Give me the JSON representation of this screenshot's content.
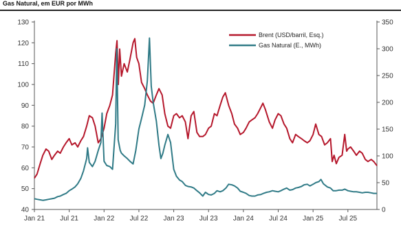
{
  "chart_data": {
    "type": "line",
    "title": "Gas Natural, em EUR por MWh",
    "x_ticks": [
      "Jan 21",
      "Jul 21",
      "Jan 22",
      "Jul 22",
      "Jan 23",
      "Jul 23",
      "Jan 24",
      "Jul 24",
      "Jan 25",
      "Jul 25"
    ],
    "x_range": [
      "2021-01",
      "2025-12"
    ],
    "y_left": {
      "min": 40,
      "max": 130,
      "ticks": [
        40,
        50,
        60,
        70,
        80,
        90,
        100,
        110,
        120,
        130
      ]
    },
    "y_right": {
      "min": 0,
      "max": 350,
      "ticks": [
        0,
        50,
        100,
        150,
        200,
        250,
        300,
        350
      ]
    },
    "legend_position": "top-right",
    "grid": false,
    "series": [
      {
        "name": "Brent (USD/barril, Esq.)",
        "axis": "left",
        "color": "#b5172b",
        "points": [
          [
            "2021-01-01",
            55
          ],
          [
            "2021-01-15",
            57
          ],
          [
            "2021-02-01",
            62
          ],
          [
            "2021-02-15",
            66
          ],
          [
            "2021-03-01",
            69
          ],
          [
            "2021-03-15",
            68
          ],
          [
            "2021-04-01",
            64
          ],
          [
            "2021-04-15",
            66
          ],
          [
            "2021-05-01",
            68
          ],
          [
            "2021-05-15",
            67
          ],
          [
            "2021-06-01",
            70
          ],
          [
            "2021-06-15",
            72
          ],
          [
            "2021-07-01",
            74
          ],
          [
            "2021-07-15",
            71
          ],
          [
            "2021-08-01",
            72
          ],
          [
            "2021-08-15",
            70
          ],
          [
            "2021-09-01",
            73
          ],
          [
            "2021-09-15",
            75
          ],
          [
            "2021-10-01",
            80
          ],
          [
            "2021-10-15",
            85
          ],
          [
            "2021-11-01",
            84
          ],
          [
            "2021-11-15",
            80
          ],
          [
            "2021-12-01",
            72
          ],
          [
            "2021-12-15",
            74
          ],
          [
            "2022-01-01",
            79
          ],
          [
            "2022-01-15",
            86
          ],
          [
            "2022-02-01",
            90
          ],
          [
            "2022-02-15",
            95
          ],
          [
            "2022-03-01",
            115
          ],
          [
            "2022-03-08",
            121
          ],
          [
            "2022-03-15",
            100
          ],
          [
            "2022-03-22",
            117
          ],
          [
            "2022-04-01",
            104
          ],
          [
            "2022-04-15",
            110
          ],
          [
            "2022-05-01",
            106
          ],
          [
            "2022-05-15",
            112
          ],
          [
            "2022-06-01",
            120
          ],
          [
            "2022-06-10",
            122
          ],
          [
            "2022-06-20",
            113
          ],
          [
            "2022-07-01",
            110
          ],
          [
            "2022-07-15",
            101
          ],
          [
            "2022-08-01",
            98
          ],
          [
            "2022-08-15",
            95
          ],
          [
            "2022-09-01",
            92
          ],
          [
            "2022-09-15",
            91
          ],
          [
            "2022-10-01",
            95
          ],
          [
            "2022-10-15",
            98
          ],
          [
            "2022-11-01",
            95
          ],
          [
            "2022-11-15",
            86
          ],
          [
            "2022-12-01",
            80
          ],
          [
            "2022-12-15",
            79
          ],
          [
            "2023-01-01",
            85
          ],
          [
            "2023-01-15",
            86
          ],
          [
            "2023-02-01",
            84
          ],
          [
            "2023-02-15",
            85
          ],
          [
            "2023-03-01",
            82
          ],
          [
            "2023-03-15",
            74
          ],
          [
            "2023-04-01",
            85
          ],
          [
            "2023-04-15",
            87
          ],
          [
            "2023-05-01",
            77
          ],
          [
            "2023-05-15",
            75
          ],
          [
            "2023-06-01",
            75
          ],
          [
            "2023-06-15",
            76
          ],
          [
            "2023-07-01",
            79
          ],
          [
            "2023-07-15",
            80
          ],
          [
            "2023-08-01",
            86
          ],
          [
            "2023-08-15",
            85
          ],
          [
            "2023-09-01",
            90
          ],
          [
            "2023-09-15",
            94
          ],
          [
            "2023-09-28",
            96
          ],
          [
            "2023-10-15",
            90
          ],
          [
            "2023-11-01",
            86
          ],
          [
            "2023-11-15",
            81
          ],
          [
            "2023-12-01",
            79
          ],
          [
            "2023-12-15",
            76
          ],
          [
            "2024-01-01",
            77
          ],
          [
            "2024-01-15",
            79
          ],
          [
            "2024-02-01",
            82
          ],
          [
            "2024-02-15",
            83
          ],
          [
            "2024-03-01",
            84
          ],
          [
            "2024-03-15",
            86
          ],
          [
            "2024-04-01",
            89
          ],
          [
            "2024-04-12",
            91
          ],
          [
            "2024-04-25",
            88
          ],
          [
            "2024-05-15",
            82
          ],
          [
            "2024-06-01",
            79
          ],
          [
            "2024-06-15",
            83
          ],
          [
            "2024-07-01",
            86
          ],
          [
            "2024-07-15",
            85
          ],
          [
            "2024-08-01",
            81
          ],
          [
            "2024-08-15",
            79
          ],
          [
            "2024-09-01",
            74
          ],
          [
            "2024-09-15",
            72
          ],
          [
            "2024-10-01",
            76
          ],
          [
            "2024-10-15",
            75
          ],
          [
            "2024-11-01",
            74
          ],
          [
            "2024-11-15",
            73
          ],
          [
            "2024-12-01",
            72
          ],
          [
            "2024-12-15",
            73
          ],
          [
            "2025-01-01",
            76
          ],
          [
            "2025-01-15",
            81
          ],
          [
            "2025-02-01",
            76
          ],
          [
            "2025-02-15",
            75
          ],
          [
            "2025-03-01",
            71
          ],
          [
            "2025-03-15",
            72
          ],
          [
            "2025-04-01",
            74
          ],
          [
            "2025-04-10",
            63
          ],
          [
            "2025-04-20",
            66
          ],
          [
            "2025-05-01",
            62
          ],
          [
            "2025-05-15",
            65
          ],
          [
            "2025-06-01",
            66
          ],
          [
            "2025-06-15",
            76
          ],
          [
            "2025-06-25",
            68
          ],
          [
            "2025-07-01",
            69
          ],
          [
            "2025-07-15",
            70
          ],
          [
            "2025-08-01",
            68
          ],
          [
            "2025-08-15",
            66
          ],
          [
            "2025-09-01",
            68
          ],
          [
            "2025-09-15",
            67
          ],
          [
            "2025-10-01",
            64
          ],
          [
            "2025-10-15",
            63
          ],
          [
            "2025-11-01",
            64
          ],
          [
            "2025-11-15",
            63
          ],
          [
            "2025-12-01",
            61
          ]
        ]
      },
      {
        "name": "Gas Natural (E., MWh)",
        "axis": "right",
        "color": "#2f7a86",
        "points": [
          [
            "2021-01-01",
            20
          ],
          [
            "2021-01-15",
            19
          ],
          [
            "2021-02-01",
            18
          ],
          [
            "2021-02-15",
            17
          ],
          [
            "2021-03-01",
            18
          ],
          [
            "2021-03-15",
            19
          ],
          [
            "2021-04-01",
            20
          ],
          [
            "2021-04-15",
            21
          ],
          [
            "2021-05-01",
            24
          ],
          [
            "2021-05-15",
            25
          ],
          [
            "2021-06-01",
            28
          ],
          [
            "2021-06-15",
            30
          ],
          [
            "2021-07-01",
            35
          ],
          [
            "2021-07-15",
            38
          ],
          [
            "2021-08-01",
            42
          ],
          [
            "2021-08-15",
            48
          ],
          [
            "2021-09-01",
            58
          ],
          [
            "2021-09-15",
            72
          ],
          [
            "2021-10-01",
            95
          ],
          [
            "2021-10-06",
            115
          ],
          [
            "2021-10-15",
            88
          ],
          [
            "2021-11-01",
            80
          ],
          [
            "2021-11-15",
            90
          ],
          [
            "2021-12-01",
            110
          ],
          [
            "2021-12-15",
            125
          ],
          [
            "2021-12-21",
            180
          ],
          [
            "2022-01-01",
            90
          ],
          [
            "2022-01-15",
            82
          ],
          [
            "2022-02-01",
            80
          ],
          [
            "2022-02-15",
            75
          ],
          [
            "2022-03-01",
            160
          ],
          [
            "2022-03-07",
            300
          ],
          [
            "2022-03-14",
            130
          ],
          [
            "2022-03-25",
            110
          ],
          [
            "2022-04-01",
            105
          ],
          [
            "2022-04-15",
            100
          ],
          [
            "2022-05-01",
            95
          ],
          [
            "2022-05-15",
            90
          ],
          [
            "2022-06-01",
            85
          ],
          [
            "2022-06-15",
            110
          ],
          [
            "2022-07-01",
            150
          ],
          [
            "2022-07-15",
            170
          ],
          [
            "2022-08-01",
            195
          ],
          [
            "2022-08-15",
            240
          ],
          [
            "2022-08-26",
            320
          ],
          [
            "2022-09-05",
            230
          ],
          [
            "2022-09-15",
            200
          ],
          [
            "2022-10-01",
            165
          ],
          [
            "2022-10-15",
            120
          ],
          [
            "2022-10-25",
            95
          ],
          [
            "2022-11-05",
            105
          ],
          [
            "2022-11-15",
            120
          ],
          [
            "2022-12-01",
            140
          ],
          [
            "2022-12-15",
            125
          ],
          [
            "2023-01-01",
            75
          ],
          [
            "2023-01-15",
            62
          ],
          [
            "2023-02-01",
            55
          ],
          [
            "2023-02-15",
            52
          ],
          [
            "2023-03-01",
            45
          ],
          [
            "2023-03-15",
            43
          ],
          [
            "2023-04-01",
            42
          ],
          [
            "2023-04-15",
            40
          ],
          [
            "2023-05-01",
            35
          ],
          [
            "2023-05-15",
            31
          ],
          [
            "2023-06-01",
            25
          ],
          [
            "2023-06-15",
            32
          ],
          [
            "2023-07-01",
            28
          ],
          [
            "2023-07-15",
            27
          ],
          [
            "2023-08-01",
            30
          ],
          [
            "2023-08-15",
            35
          ],
          [
            "2023-09-01",
            33
          ],
          [
            "2023-09-15",
            35
          ],
          [
            "2023-10-01",
            40
          ],
          [
            "2023-10-15",
            47
          ],
          [
            "2023-11-01",
            46
          ],
          [
            "2023-11-15",
            44
          ],
          [
            "2023-12-01",
            40
          ],
          [
            "2023-12-15",
            34
          ],
          [
            "2024-01-01",
            32
          ],
          [
            "2024-01-15",
            30
          ],
          [
            "2024-02-01",
            26
          ],
          [
            "2024-02-15",
            25
          ],
          [
            "2024-03-01",
            25
          ],
          [
            "2024-03-15",
            27
          ],
          [
            "2024-04-01",
            28
          ],
          [
            "2024-04-15",
            30
          ],
          [
            "2024-05-01",
            32
          ],
          [
            "2024-05-15",
            33
          ],
          [
            "2024-06-01",
            35
          ],
          [
            "2024-06-15",
            34
          ],
          [
            "2024-07-01",
            33
          ],
          [
            "2024-07-15",
            35
          ],
          [
            "2024-08-01",
            38
          ],
          [
            "2024-08-15",
            40
          ],
          [
            "2024-09-01",
            36
          ],
          [
            "2024-09-15",
            37
          ],
          [
            "2024-10-01",
            40
          ],
          [
            "2024-10-15",
            41
          ],
          [
            "2024-11-01",
            43
          ],
          [
            "2024-11-15",
            46
          ],
          [
            "2024-12-01",
            47
          ],
          [
            "2024-12-15",
            44
          ],
          [
            "2025-01-01",
            47
          ],
          [
            "2025-01-15",
            50
          ],
          [
            "2025-02-01",
            52
          ],
          [
            "2025-02-12",
            56
          ],
          [
            "2025-02-25",
            48
          ],
          [
            "2025-03-15",
            42
          ],
          [
            "2025-04-01",
            40
          ],
          [
            "2025-04-15",
            35
          ],
          [
            "2025-05-01",
            35
          ],
          [
            "2025-05-15",
            36
          ],
          [
            "2025-06-01",
            36
          ],
          [
            "2025-06-15",
            38
          ],
          [
            "2025-07-01",
            35
          ],
          [
            "2025-07-15",
            34
          ],
          [
            "2025-08-01",
            33
          ],
          [
            "2025-08-15",
            33
          ],
          [
            "2025-09-01",
            32
          ],
          [
            "2025-09-15",
            31
          ],
          [
            "2025-10-01",
            32
          ],
          [
            "2025-10-15",
            32
          ],
          [
            "2025-11-01",
            31
          ],
          [
            "2025-11-15",
            30
          ],
          [
            "2025-12-01",
            30
          ]
        ]
      }
    ]
  }
}
